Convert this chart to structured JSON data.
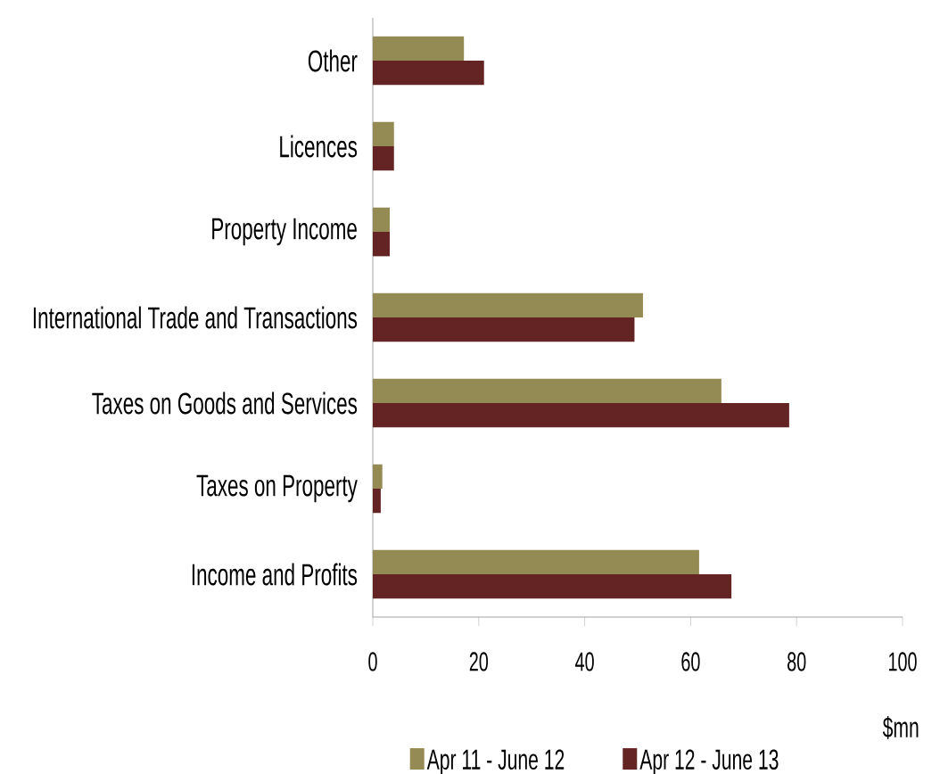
{
  "chart_data": {
    "type": "bar",
    "orientation": "horizontal",
    "categories": [
      "Other",
      "Licences",
      "Property Income",
      "International Trade and Transactions",
      "Taxes on Goods and Services",
      "Taxes on Property",
      "Income and Profits"
    ],
    "series": [
      {
        "name": "Apr 11 - June 12",
        "color": "#948a54",
        "values": [
          17.2,
          4,
          3.2,
          51,
          65.8,
          1.8,
          61.6
        ]
      },
      {
        "name": "Apr 12 - June 13",
        "color": "#632423",
        "values": [
          21,
          4,
          3.2,
          49.4,
          78.6,
          1.5,
          67.7
        ]
      }
    ],
    "xlabel": "$mn",
    "xlim": [
      0,
      100
    ],
    "xticks": [
      0,
      20,
      40,
      60,
      80,
      100
    ],
    "legend": "bottom"
  }
}
